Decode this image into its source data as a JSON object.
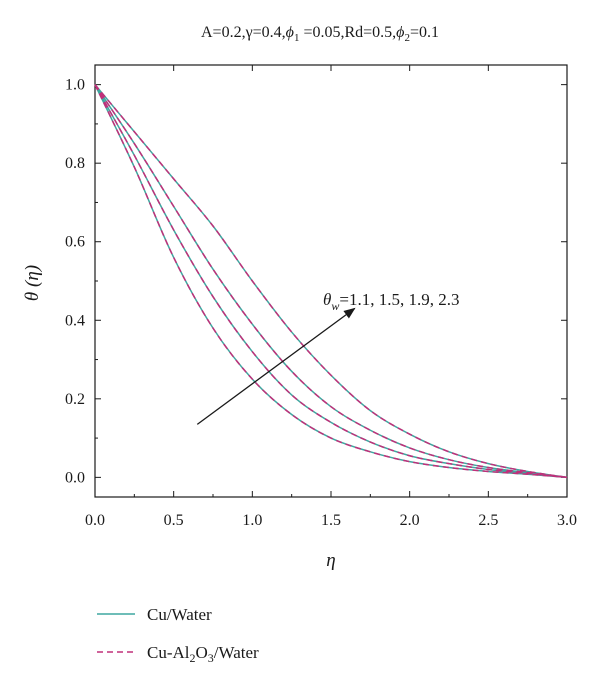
{
  "chart_data": {
    "type": "line",
    "title": "A=0.2,γ=0.4,ϕ1 =0.05,Rd=0.5,ϕ2=0.1",
    "title_parts": {
      "p1": "A=0.2,γ=0.4,",
      "phi": "ϕ",
      "sub1": "1",
      "p2": " =0.05,Rd=0.5,",
      "sub2": "2",
      "p3": "=0.1"
    },
    "xlabel": "η",
    "ylabel": "θ (η)",
    "xlim": [
      0,
      3
    ],
    "ylim": [
      -0.05,
      1.05
    ],
    "xticks": [
      "0.0",
      "0.5",
      "1.0",
      "1.5",
      "2.0",
      "2.5",
      "3.0"
    ],
    "yticks": [
      "0.0",
      "0.2",
      "0.4",
      "0.6",
      "0.8",
      "1.0"
    ],
    "grid": false,
    "legend_position": "bottom-left",
    "annotation": {
      "text": "θw=1.1, 1.5, 1.9, 2.3",
      "theta": "θ",
      "sub": "w",
      "values": "=1.1, 1.5, 1.9, 2.3",
      "arrow_from": [
        0.65,
        0.135
      ],
      "arrow_to": [
        1.65,
        0.43
      ]
    },
    "x": [
      0,
      0.25,
      0.5,
      0.75,
      1.0,
      1.25,
      1.5,
      1.75,
      2.0,
      2.25,
      2.5,
      2.75,
      3.0
    ],
    "series": [
      {
        "name": "Cu/Water",
        "color": "#3fa7a0",
        "style": "solid",
        "curves": [
          [
            1.0,
            0.79,
            0.56,
            0.38,
            0.25,
            0.16,
            0.1,
            0.065,
            0.04,
            0.025,
            0.015,
            0.008,
            0.0
          ],
          [
            1.0,
            0.82,
            0.63,
            0.46,
            0.32,
            0.21,
            0.14,
            0.09,
            0.055,
            0.035,
            0.02,
            0.01,
            0.0
          ],
          [
            1.0,
            0.85,
            0.69,
            0.53,
            0.39,
            0.27,
            0.18,
            0.12,
            0.075,
            0.045,
            0.025,
            0.012,
            0.0
          ],
          [
            1.0,
            0.88,
            0.76,
            0.64,
            0.5,
            0.37,
            0.26,
            0.17,
            0.11,
            0.065,
            0.035,
            0.015,
            0.0
          ]
        ]
      },
      {
        "name": "Cu-Al2O3/Water",
        "name_parts": {
          "p1": "Cu-Al",
          "sub1": "2",
          "p2": "O",
          "sub2": "3",
          "p3": "/Water"
        },
        "color": "#c0307a",
        "style": "dashed",
        "curves": [
          [
            1.0,
            0.79,
            0.56,
            0.38,
            0.25,
            0.16,
            0.1,
            0.065,
            0.04,
            0.025,
            0.015,
            0.008,
            0.0
          ],
          [
            1.0,
            0.82,
            0.63,
            0.46,
            0.32,
            0.21,
            0.14,
            0.09,
            0.055,
            0.035,
            0.02,
            0.01,
            0.0
          ],
          [
            1.0,
            0.85,
            0.69,
            0.53,
            0.39,
            0.27,
            0.18,
            0.12,
            0.075,
            0.045,
            0.025,
            0.012,
            0.0
          ],
          [
            1.0,
            0.88,
            0.76,
            0.64,
            0.5,
            0.37,
            0.26,
            0.17,
            0.11,
            0.065,
            0.035,
            0.015,
            0.0
          ]
        ]
      }
    ]
  }
}
